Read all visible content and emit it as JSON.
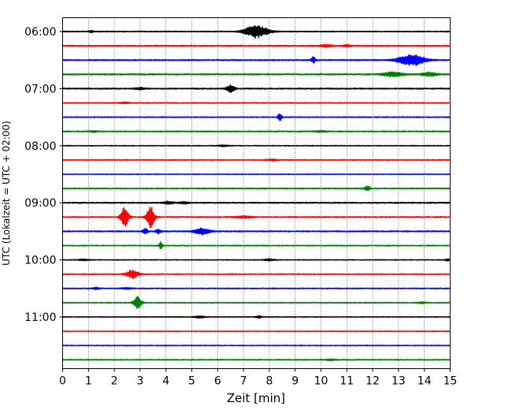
{
  "chart_data": {
    "type": "line",
    "title": "",
    "xlabel": "Zeit  [min]",
    "ylabel": "UTC (Lokalzeit = UTC + 02:00)",
    "xlim": [
      0,
      15
    ],
    "xticks": [
      "0",
      "1",
      "2",
      "3",
      "4",
      "5",
      "6",
      "7",
      "8",
      "9",
      "10",
      "11",
      "12",
      "13",
      "14",
      "15"
    ],
    "yticks": [
      {
        "row": 0,
        "label": "06:00"
      },
      {
        "row": 4,
        "label": "07:00"
      },
      {
        "row": 8,
        "label": "08:00"
      },
      {
        "row": 12,
        "label": "09:00"
      },
      {
        "row": 16,
        "label": "10:00"
      },
      {
        "row": 20,
        "label": "11:00"
      }
    ],
    "grid_x": "dotted vertical lines at each minute",
    "trace_colors": [
      "#000000",
      "#ff0000",
      "#0000ff",
      "#008000"
    ],
    "rows": [
      {
        "start": "06:00",
        "color": "#000000",
        "noise": 0.5,
        "events": [
          {
            "t": 7.5,
            "amp": 2.6,
            "width": 0.45
          },
          {
            "t": 1.1,
            "amp": 0.4,
            "width": 0.1
          }
        ]
      },
      {
        "start": "06:15",
        "color": "#ff0000",
        "noise": 0.6,
        "events": [
          {
            "t": 10.2,
            "amp": 0.5,
            "width": 0.2
          },
          {
            "t": 11.0,
            "amp": 0.4,
            "width": 0.15
          }
        ]
      },
      {
        "start": "06:30",
        "color": "#0000ff",
        "noise": 0.6,
        "events": [
          {
            "t": 9.7,
            "amp": 1.3,
            "width": 0.08
          },
          {
            "t": 13.5,
            "amp": 2.3,
            "width": 0.5
          }
        ]
      },
      {
        "start": "06:45",
        "color": "#008000",
        "noise": 0.7,
        "events": [
          {
            "t": 12.8,
            "amp": 0.9,
            "width": 0.4
          },
          {
            "t": 14.2,
            "amp": 0.7,
            "width": 0.3
          }
        ]
      },
      {
        "start": "07:00",
        "color": "#000000",
        "noise": 0.6,
        "events": [
          {
            "t": 6.5,
            "amp": 1.5,
            "width": 0.15
          },
          {
            "t": 3.0,
            "amp": 0.4,
            "width": 0.2
          }
        ]
      },
      {
        "start": "07:15",
        "color": "#ff0000",
        "noise": 0.5,
        "events": [
          {
            "t": 2.4,
            "amp": 0.3,
            "width": 0.15
          }
        ]
      },
      {
        "start": "07:30",
        "color": "#0000ff",
        "noise": 0.5,
        "events": [
          {
            "t": 8.4,
            "amp": 1.6,
            "width": 0.08
          }
        ]
      },
      {
        "start": "07:45",
        "color": "#008000",
        "noise": 0.6,
        "events": [
          {
            "t": 1.2,
            "amp": 0.3,
            "width": 0.15
          },
          {
            "t": 10.0,
            "amp": 0.3,
            "width": 0.2
          }
        ]
      },
      {
        "start": "08:00",
        "color": "#000000",
        "noise": 0.4,
        "events": [
          {
            "t": 6.2,
            "amp": 0.3,
            "width": 0.2
          }
        ]
      },
      {
        "start": "08:15",
        "color": "#ff0000",
        "noise": 0.5,
        "events": [
          {
            "t": 8.1,
            "amp": 0.3,
            "width": 0.2
          }
        ]
      },
      {
        "start": "08:30",
        "color": "#0000ff",
        "noise": 0.4,
        "events": []
      },
      {
        "start": "08:45",
        "color": "#008000",
        "noise": 0.6,
        "events": [
          {
            "t": 11.8,
            "amp": 1.0,
            "width": 0.1
          }
        ]
      },
      {
        "start": "09:00",
        "color": "#000000",
        "noise": 0.6,
        "events": [
          {
            "t": 4.1,
            "amp": 0.5,
            "width": 0.2
          },
          {
            "t": 4.7,
            "amp": 0.4,
            "width": 0.2
          }
        ]
      },
      {
        "start": "09:15",
        "color": "#ff0000",
        "noise": 0.6,
        "events": [
          {
            "t": 2.4,
            "amp": 4.0,
            "width": 0.15
          },
          {
            "t": 3.4,
            "amp": 4.2,
            "width": 0.15
          },
          {
            "t": 7.0,
            "amp": 0.4,
            "width": 0.3
          }
        ]
      },
      {
        "start": "09:30",
        "color": "#0000ff",
        "noise": 0.6,
        "events": [
          {
            "t": 3.2,
            "amp": 1.2,
            "width": 0.1
          },
          {
            "t": 3.7,
            "amp": 0.9,
            "width": 0.1
          },
          {
            "t": 5.4,
            "amp": 1.3,
            "width": 0.3
          }
        ]
      },
      {
        "start": "09:45",
        "color": "#008000",
        "noise": 0.5,
        "events": [
          {
            "t": 3.8,
            "amp": 1.6,
            "width": 0.06
          }
        ]
      },
      {
        "start": "10:00",
        "color": "#000000",
        "noise": 0.4,
        "events": [
          {
            "t": 0.8,
            "amp": 0.3,
            "width": 0.2
          },
          {
            "t": 8.0,
            "amp": 0.4,
            "width": 0.2
          },
          {
            "t": 14.9,
            "amp": 0.4,
            "width": 0.1
          }
        ]
      },
      {
        "start": "10:15",
        "color": "#ff0000",
        "noise": 0.5,
        "events": [
          {
            "t": 2.7,
            "amp": 1.6,
            "width": 0.25
          }
        ]
      },
      {
        "start": "10:30",
        "color": "#0000ff",
        "noise": 0.5,
        "events": [
          {
            "t": 1.3,
            "amp": 0.4,
            "width": 0.15
          },
          {
            "t": 2.5,
            "amp": 0.3,
            "width": 0.2
          }
        ]
      },
      {
        "start": "10:45",
        "color": "#008000",
        "noise": 0.5,
        "events": [
          {
            "t": 2.9,
            "amp": 2.4,
            "width": 0.15
          },
          {
            "t": 13.9,
            "amp": 0.3,
            "width": 0.15
          }
        ]
      },
      {
        "start": "11:00",
        "color": "#000000",
        "noise": 0.4,
        "events": [
          {
            "t": 5.3,
            "amp": 0.4,
            "width": 0.2
          },
          {
            "t": 7.6,
            "amp": 0.5,
            "width": 0.1
          }
        ]
      },
      {
        "start": "11:15",
        "color": "#ff0000",
        "noise": 0.4,
        "events": []
      },
      {
        "start": "11:30",
        "color": "#0000ff",
        "noise": 0.4,
        "events": []
      },
      {
        "start": "11:45",
        "color": "#008000",
        "noise": 0.5,
        "events": [
          {
            "t": 10.4,
            "amp": 0.3,
            "width": 0.2
          }
        ]
      }
    ]
  }
}
